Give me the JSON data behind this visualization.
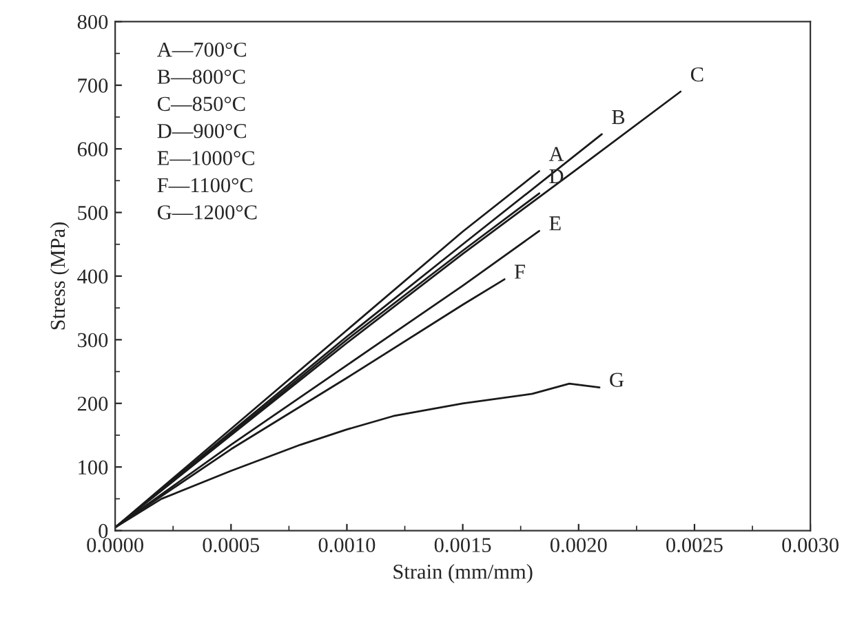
{
  "chart_data": {
    "type": "line",
    "xlabel": "Strain (mm/mm)",
    "ylabel": "Stress (MPa)",
    "xlim": [
      0,
      0.003
    ],
    "xticks": [
      {
        "value": 0,
        "label": "0.0000"
      },
      {
        "value": 0.0005,
        "label": "0.0005"
      },
      {
        "value": 0.001,
        "label": "0.0010"
      },
      {
        "value": 0.0015,
        "label": "0.0015"
      },
      {
        "value": 0.002,
        "label": "0.0020"
      },
      {
        "value": 0.0025,
        "label": "0.0025"
      },
      {
        "value": 0.003,
        "label": "0.0030"
      }
    ],
    "ylim": [
      0,
      800
    ],
    "yticks": [
      0,
      100,
      200,
      300,
      400,
      500,
      600,
      700,
      800
    ],
    "grid": false,
    "legend": false,
    "marker": "none",
    "line_style": "solid",
    "annotations": [
      "A—700°C\nB—800°C\nC—850°C\nD—900°C\nE—1000°C\nF—1100°C\nG—1200°C"
    ],
    "series": [
      {
        "name": "A",
        "color": "#1a1a1a",
        "x": [
          0,
          0.0005,
          0.001,
          0.0015,
          0.00183
        ],
        "values": [
          5,
          160,
          315,
          470,
          565
        ]
      },
      {
        "name": "B",
        "color": "#1a1a1a",
        "x": [
          0,
          0.0005,
          0.001,
          0.0015,
          0.0021
        ],
        "values": [
          5,
          155,
          305,
          450,
          623
        ]
      },
      {
        "name": "C",
        "color": "#1a1a1a",
        "x": [
          0,
          0.0005,
          0.001,
          0.0015,
          0.002,
          0.00244
        ],
        "values": [
          5,
          150,
          295,
          435,
          570,
          690
        ]
      },
      {
        "name": "D",
        "color": "#1a1a1a",
        "x": [
          0,
          0.0005,
          0.001,
          0.0015,
          0.00183
        ],
        "values": [
          5,
          152,
          300,
          440,
          530
        ]
      },
      {
        "name": "E",
        "color": "#1a1a1a",
        "x": [
          0,
          0.0005,
          0.001,
          0.0015,
          0.00183
        ],
        "values": [
          5,
          135,
          260,
          385,
          471
        ]
      },
      {
        "name": "F",
        "color": "#1a1a1a",
        "x": [
          0,
          0.0005,
          0.001,
          0.0015,
          0.00168
        ],
        "values": [
          5,
          128,
          240,
          355,
          395
        ]
      },
      {
        "name": "G",
        "color": "#1a1a1a",
        "x": [
          0,
          0.0002,
          0.0005,
          0.0008,
          0.001,
          0.0012,
          0.0015,
          0.0018,
          0.00196,
          0.00209
        ],
        "values": [
          5,
          50,
          94,
          135,
          159,
          180,
          200,
          215,
          231,
          225
        ]
      }
    ]
  }
}
